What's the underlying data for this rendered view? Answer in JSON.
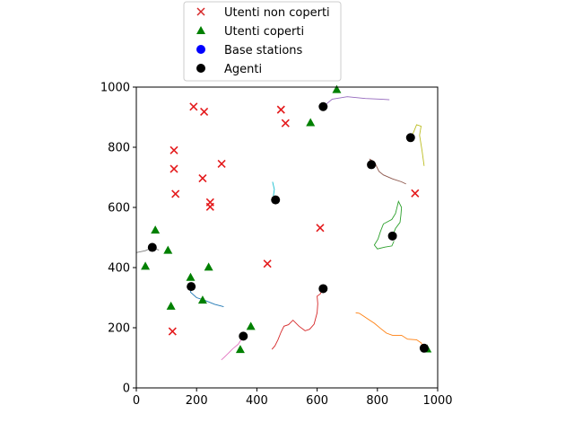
{
  "chart_data": {
    "type": "scatter",
    "title": "",
    "xlabel": "",
    "ylabel": "",
    "xlim": [
      0,
      1000
    ],
    "ylim": [
      0,
      1000
    ],
    "xticks": [
      0,
      200,
      400,
      600,
      800,
      1000
    ],
    "yticks": [
      0,
      200,
      400,
      600,
      800,
      1000
    ],
    "grid": false,
    "legend_position": "top-center (above plot)",
    "legend": [
      {
        "label": "Utenti non coperti",
        "marker": "x",
        "color": "#d62728"
      },
      {
        "label": "Utenti coperti",
        "marker": "triangle",
        "color": "#008000"
      },
      {
        "label": "Base stations",
        "marker": "circle",
        "color": "#0000ff"
      },
      {
        "label": "Agenti",
        "marker": "circle",
        "color": "#000000"
      }
    ],
    "series": [
      {
        "name": "Utenti non coperti",
        "marker": "x",
        "color": "#e41a1c",
        "points": [
          [
            190,
            935
          ],
          [
            225,
            918
          ],
          [
            480,
            925
          ],
          [
            495,
            880
          ],
          [
            125,
            790
          ],
          [
            125,
            728
          ],
          [
            220,
            697
          ],
          [
            283,
            745
          ],
          [
            130,
            645
          ],
          [
            245,
            617
          ],
          [
            245,
            602
          ],
          [
            610,
            532
          ],
          [
            925,
            647
          ],
          [
            435,
            413
          ],
          [
            120,
            188
          ]
        ]
      },
      {
        "name": "Utenti coperti",
        "marker": "triangle",
        "color": "#008000",
        "points": [
          [
            665,
            992
          ],
          [
            578,
            882
          ],
          [
            63,
            525
          ],
          [
            105,
            458
          ],
          [
            30,
            405
          ],
          [
            180,
            368
          ],
          [
            240,
            402
          ],
          [
            115,
            272
          ],
          [
            220,
            292
          ],
          [
            380,
            205
          ],
          [
            345,
            128
          ],
          [
            965,
            130
          ]
        ]
      },
      {
        "name": "Agenti",
        "marker": "circle",
        "color": "#000000",
        "points": [
          [
            620,
            935
          ],
          [
            910,
            832
          ],
          [
            780,
            742
          ],
          [
            462,
            625
          ],
          [
            850,
            505
          ],
          [
            53,
            467
          ],
          [
            182,
            337
          ],
          [
            620,
            330
          ],
          [
            355,
            172
          ],
          [
            955,
            132
          ]
        ]
      }
    ],
    "trajectories": [
      {
        "color": "#9467bd",
        "points": [
          [
            620,
            935
          ],
          [
            650,
            960
          ],
          [
            700,
            968
          ],
          [
            760,
            962
          ],
          [
            810,
            960
          ],
          [
            840,
            958
          ]
        ]
      },
      {
        "color": "#bcbd22",
        "points": [
          [
            910,
            832
          ],
          [
            920,
            850
          ],
          [
            930,
            875
          ],
          [
            945,
            870
          ],
          [
            940,
            840
          ],
          [
            948,
            790
          ],
          [
            955,
            738
          ]
        ]
      },
      {
        "color": "#8c564b",
        "points": [
          [
            780,
            742
          ],
          [
            775,
            760
          ],
          [
            790,
            752
          ],
          [
            805,
            720
          ],
          [
            820,
            708
          ],
          [
            850,
            695
          ],
          [
            880,
            685
          ],
          [
            895,
            678
          ]
        ]
      },
      {
        "color": "#17becf",
        "points": [
          [
            462,
            625
          ],
          [
            455,
            640
          ],
          [
            458,
            660
          ],
          [
            452,
            685
          ]
        ]
      },
      {
        "color": "#2ca02c",
        "points": [
          [
            850,
            505
          ],
          [
            860,
            530
          ],
          [
            875,
            550
          ],
          [
            878,
            575
          ],
          [
            880,
            600
          ],
          [
            870,
            620
          ],
          [
            860,
            580
          ],
          [
            848,
            560
          ],
          [
            820,
            545
          ],
          [
            810,
            520
          ],
          [
            802,
            495
          ],
          [
            790,
            475
          ],
          [
            800,
            462
          ],
          [
            825,
            468
          ],
          [
            848,
            472
          ],
          [
            855,
            488
          ]
        ]
      },
      {
        "color": "#7f7f7f",
        "points": [
          [
            0,
            450
          ],
          [
            30,
            456
          ],
          [
            53,
            467
          ],
          [
            75,
            458
          ]
        ]
      },
      {
        "color": "#1f77b4",
        "points": [
          [
            182,
            337
          ],
          [
            180,
            318
          ],
          [
            200,
            300
          ],
          [
            225,
            292
          ],
          [
            260,
            278
          ],
          [
            290,
            270
          ]
        ]
      },
      {
        "color": "#d62728",
        "points": [
          [
            620,
            330
          ],
          [
            610,
            312
          ],
          [
            600,
            305
          ],
          [
            602,
            280
          ],
          [
            600,
            250
          ],
          [
            590,
            212
          ],
          [
            575,
            195
          ],
          [
            560,
            190
          ],
          [
            540,
            205
          ],
          [
            520,
            225
          ],
          [
            505,
            210
          ],
          [
            490,
            205
          ],
          [
            480,
            185
          ],
          [
            470,
            160
          ],
          [
            460,
            140
          ],
          [
            450,
            128
          ]
        ]
      },
      {
        "color": "#e377c2",
        "points": [
          [
            355,
            172
          ],
          [
            338,
            145
          ],
          [
            320,
            130
          ],
          [
            308,
            118
          ],
          [
            290,
            100
          ],
          [
            282,
            93
          ]
        ]
      },
      {
        "color": "#ff7f0e",
        "points": [
          [
            955,
            132
          ],
          [
            945,
            150
          ],
          [
            930,
            160
          ],
          [
            900,
            162
          ],
          [
            880,
            175
          ],
          [
            850,
            175
          ],
          [
            830,
            182
          ],
          [
            810,
            198
          ],
          [
            790,
            215
          ],
          [
            770,
            228
          ],
          [
            755,
            238
          ],
          [
            740,
            248
          ],
          [
            728,
            250
          ]
        ]
      }
    ]
  }
}
